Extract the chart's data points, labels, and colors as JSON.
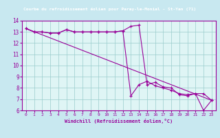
{
  "title": "Courbe du refroidissement éolien pour Paray-le-Monial - St-Yan (71)",
  "xlabel": "Windchill (Refroidissement éolien,°C)",
  "background_color": "#c8e8f0",
  "plot_bg_color": "#dff5f5",
  "title_bg_color": "#7b3d7b",
  "title_text_color": "#ffffff",
  "line_color": "#990099",
  "grid_color": "#99cccc",
  "xlim": [
    -0.5,
    23.5
  ],
  "ylim": [
    6,
    14
  ],
  "xticks": [
    0,
    1,
    2,
    3,
    4,
    5,
    6,
    7,
    8,
    9,
    10,
    11,
    12,
    13,
    14,
    15,
    16,
    17,
    18,
    19,
    20,
    21,
    22,
    23
  ],
  "yticks": [
    6,
    7,
    8,
    9,
    10,
    11,
    12,
    13,
    14
  ],
  "series1_x": [
    0,
    1,
    2,
    3,
    4,
    5,
    6,
    7,
    8,
    9,
    10,
    11,
    12,
    13,
    14,
    15,
    16,
    17,
    18,
    19,
    20,
    21,
    22,
    23
  ],
  "series1_y": [
    13.3,
    13.0,
    13.0,
    12.9,
    12.9,
    13.2,
    13.0,
    13.0,
    13.0,
    13.0,
    13.0,
    13.0,
    13.1,
    13.5,
    13.6,
    8.3,
    8.5,
    8.1,
    8.0,
    7.4,
    7.3,
    7.5,
    6.0,
    6.9
  ],
  "series2_x": [
    0,
    1,
    2,
    3,
    4,
    5,
    6,
    7,
    8,
    9,
    10,
    11,
    12,
    13,
    14,
    15,
    16,
    17,
    18,
    19,
    20,
    21,
    22,
    23
  ],
  "series2_y": [
    13.3,
    13.0,
    13.0,
    12.9,
    12.9,
    13.2,
    13.0,
    13.0,
    13.0,
    13.0,
    13.0,
    13.0,
    13.1,
    7.3,
    8.3,
    8.6,
    8.2,
    8.0,
    7.8,
    7.5,
    7.4,
    7.5,
    7.5,
    6.9
  ],
  "series3_x": [
    0,
    23
  ],
  "series3_y": [
    13.3,
    6.9
  ]
}
